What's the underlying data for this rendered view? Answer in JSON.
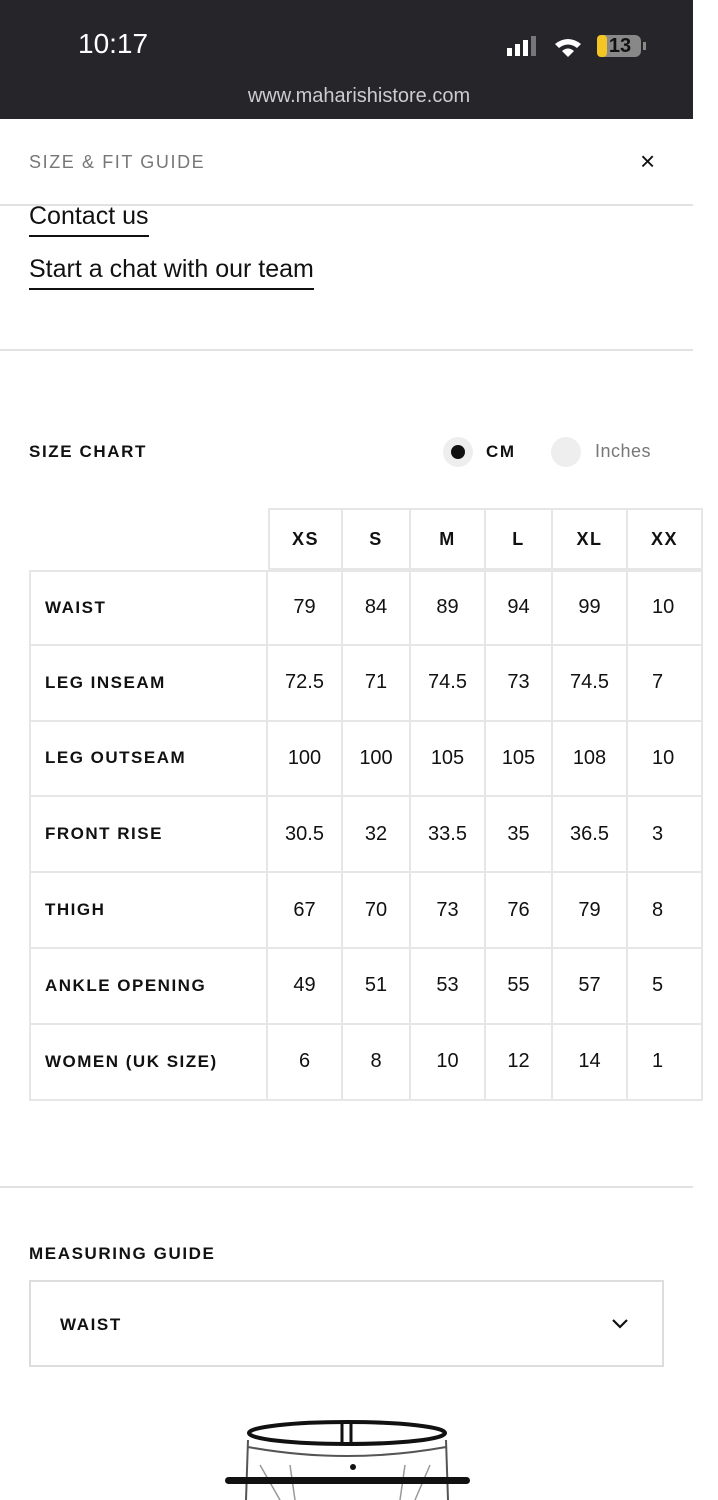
{
  "status_bar": {
    "time": "10:17",
    "battery": "13",
    "url": "www.maharishistore.com"
  },
  "header": {
    "title": "SIZE & FIT GUIDE"
  },
  "links": [
    "Contact us",
    "Start a chat with our team"
  ],
  "size_chart": {
    "title": "SIZE CHART",
    "units": [
      "CM",
      "Inches"
    ],
    "columns": [
      "XS",
      "S",
      "M",
      "L",
      "XL",
      "XX"
    ],
    "rows": [
      {
        "label": "WAIST",
        "values": [
          79,
          84,
          89,
          94,
          99,
          10
        ]
      },
      {
        "label": "LEG INSEAM",
        "values": [
          72.5,
          71,
          74.5,
          73,
          74.5,
          7
        ]
      },
      {
        "label": "LEG OUTSEAM",
        "values": [
          100,
          100,
          105,
          105,
          108,
          10
        ]
      },
      {
        "label": "FRONT RISE",
        "values": [
          30.5,
          32,
          33.5,
          35,
          36.5,
          3
        ]
      },
      {
        "label": "THIGH",
        "values": [
          67,
          70,
          73,
          76,
          79,
          8
        ]
      },
      {
        "label": "ANKLE OPENING",
        "values": [
          49,
          51,
          53,
          55,
          57,
          5
        ]
      },
      {
        "label": "WOMEN (UK SIZE)",
        "values": [
          6,
          8,
          10,
          12,
          14,
          1
        ]
      }
    ]
  },
  "measuring_guide": {
    "title": "MEASURING GUIDE",
    "selected": "WAIST"
  }
}
